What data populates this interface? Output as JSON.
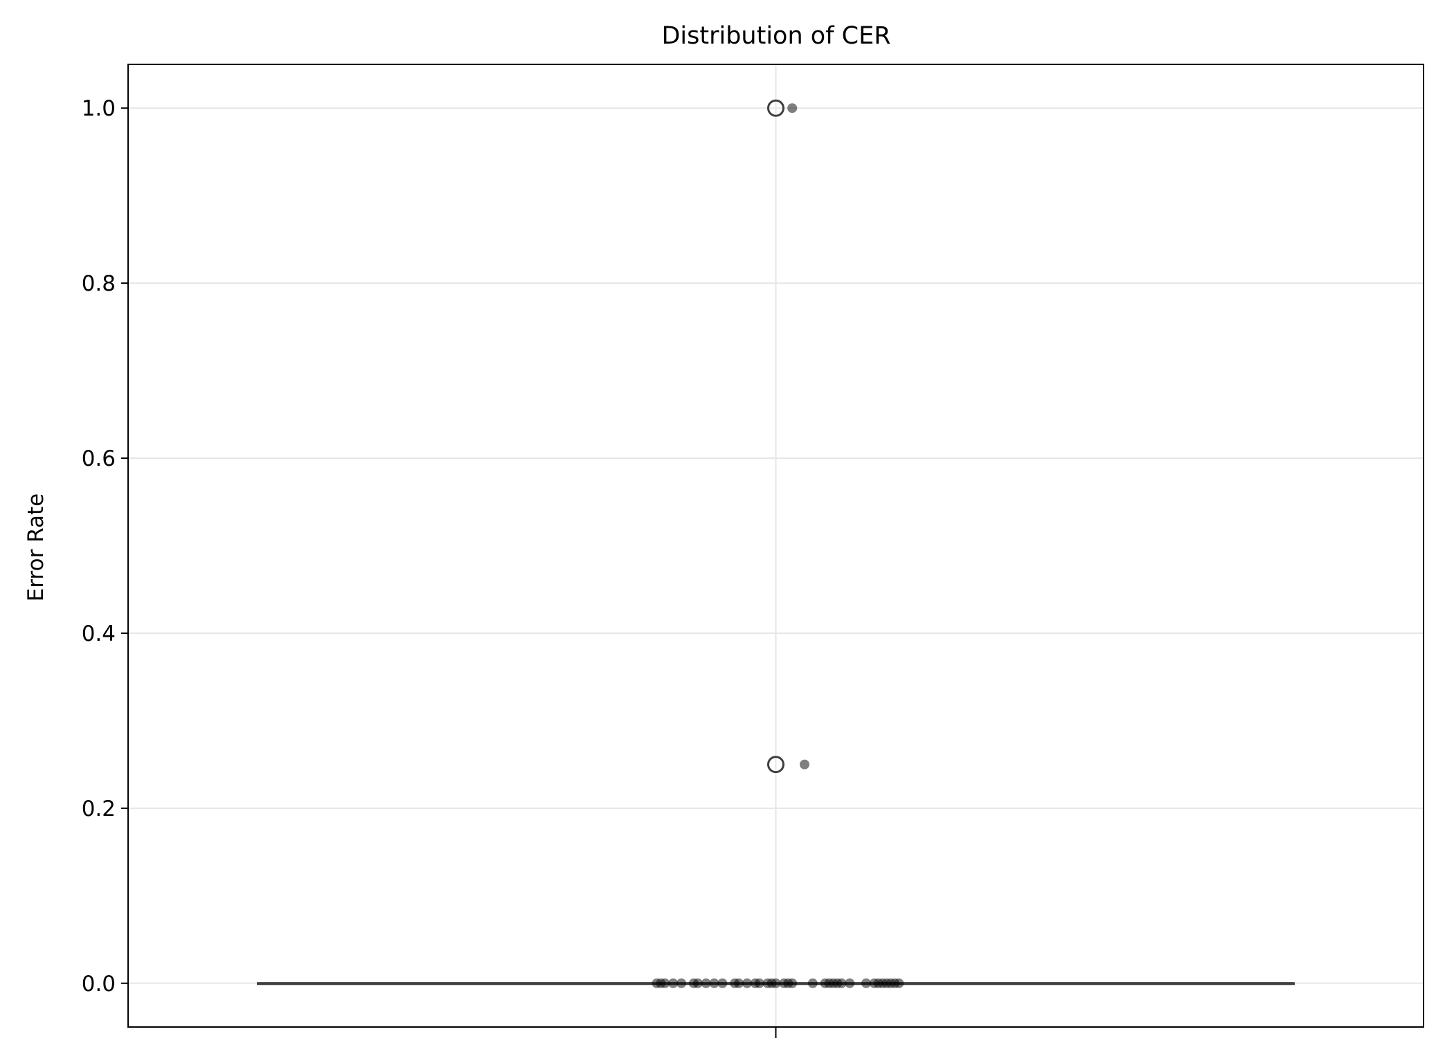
{
  "chart_data": {
    "type": "box",
    "title": "Distribution of CER",
    "ylabel": "Error Rate",
    "xlabel": "",
    "ylim": [
      -0.05,
      1.05
    ],
    "yticks": [
      0.0,
      0.2,
      0.4,
      0.6,
      0.8,
      1.0
    ],
    "ytick_labels": [
      "0.0",
      "0.2",
      "0.4",
      "0.6",
      "0.8",
      "1.0"
    ],
    "grid": true,
    "box": {
      "q1": 0.0,
      "median": 0.0,
      "q3": 0.0,
      "whisker_low": 0.0,
      "whisker_high": 0.0,
      "outliers": [
        0.25,
        1.0
      ]
    },
    "strip_points": {
      "values": [
        1.0,
        0.25,
        0.0,
        0.0,
        0.0,
        0.0,
        0.0,
        0.0,
        0.0,
        0.0,
        0.0,
        0.0,
        0.0,
        0.0,
        0.0,
        0.0,
        0.0,
        0.0,
        0.0,
        0.0,
        0.0,
        0.0,
        0.0,
        0.0,
        0.0,
        0.0,
        0.0,
        0.0,
        0.0,
        0.0,
        0.0,
        0.0,
        0.0,
        0.0,
        0.0,
        0.0,
        0.0,
        0.0
      ],
      "jitter": [
        0.04,
        0.07,
        -0.29,
        -0.28,
        -0.27,
        -0.25,
        -0.23,
        -0.2,
        -0.19,
        -0.17,
        -0.15,
        -0.13,
        -0.1,
        -0.09,
        -0.07,
        -0.05,
        -0.04,
        -0.02,
        -0.01,
        0.0,
        0.02,
        0.03,
        0.04,
        0.09,
        0.12,
        0.13,
        0.14,
        0.15,
        0.16,
        0.18,
        0.22,
        0.24,
        0.25,
        0.26,
        0.27,
        0.28,
        0.29,
        0.3
      ]
    },
    "colors": {
      "box_line": "#3f3f3f",
      "points": "#000000",
      "grid": "#e6e6e6"
    }
  }
}
